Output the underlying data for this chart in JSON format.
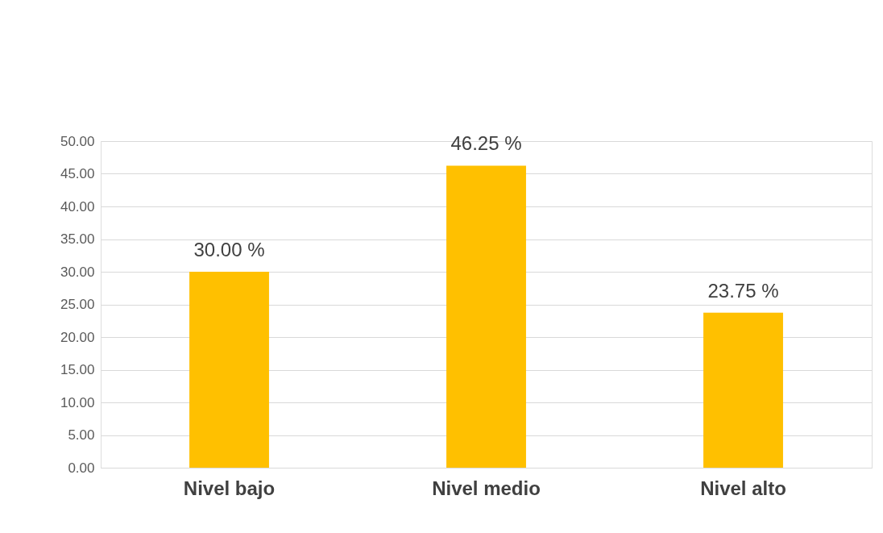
{
  "chart_data": {
    "type": "bar",
    "categories": [
      "Nivel bajo",
      "Nivel medio",
      "Nivel alto"
    ],
    "values": [
      30.0,
      46.25,
      23.75
    ],
    "value_labels": [
      "30.00 %",
      "46.25 %",
      "23.75 %"
    ],
    "color": "#ffc000",
    "ylim": [
      0,
      50
    ],
    "yticks": [
      {
        "value": 0,
        "label": "0.00"
      },
      {
        "value": 5,
        "label": "5.00"
      },
      {
        "value": 10,
        "label": "10.00"
      },
      {
        "value": 15,
        "label": "15.00"
      },
      {
        "value": 20,
        "label": "20.00"
      },
      {
        "value": 25,
        "label": "25.00"
      },
      {
        "value": 30,
        "label": "30.00"
      },
      {
        "value": 35,
        "label": "35.00"
      },
      {
        "value": 40,
        "label": "40.00"
      },
      {
        "value": 45,
        "label": "45.00"
      },
      {
        "value": 50,
        "label": "50.00"
      }
    ],
    "grid": "y"
  }
}
